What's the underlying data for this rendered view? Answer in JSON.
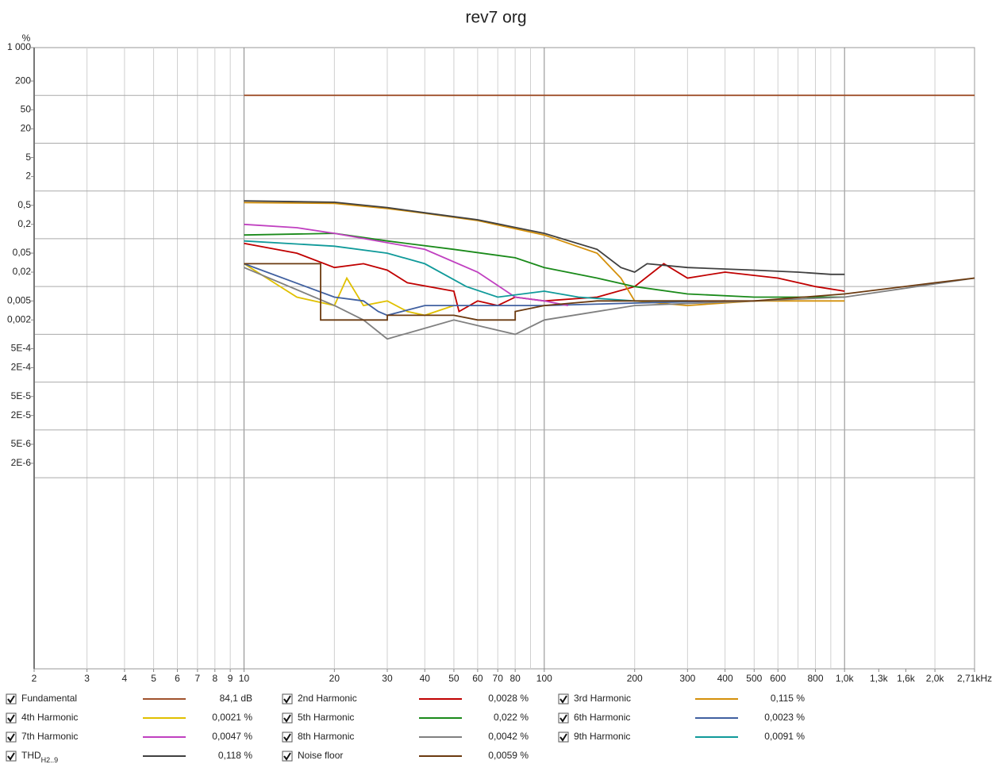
{
  "chart_data": {
    "type": "line",
    "title": "rev7 org",
    "ylabel": "%",
    "xscale": "log",
    "yscale": "log",
    "grid": true,
    "xlim": [
      2,
      2710
    ],
    "ylim": [
      1e-10,
      1000
    ],
    "xticks": [
      2,
      3,
      4,
      5,
      6,
      7,
      8,
      9,
      10,
      20,
      30,
      40,
      50,
      60,
      70,
      80,
      100,
      200,
      300,
      400,
      500,
      600,
      800,
      {
        "value": 1000,
        "label": "1,0k"
      },
      {
        "value": 1300,
        "label": "1,3k"
      },
      {
        "value": 1600,
        "label": "1,6k"
      },
      {
        "value": 2000,
        "label": "2,0k"
      },
      {
        "value": 2710,
        "label": "2,71kHz"
      }
    ],
    "yticks": [
      {
        "value": 1000,
        "label": "1 000"
      },
      200,
      50,
      20,
      5,
      2,
      {
        "value": 0.5,
        "label": "0,5"
      },
      {
        "value": 0.2,
        "label": "0,2"
      },
      {
        "value": 0.05,
        "label": "0,05"
      },
      {
        "value": 0.02,
        "label": "0,02"
      },
      {
        "value": 0.005,
        "label": "0,005"
      },
      {
        "value": 0.002,
        "label": "0,002"
      },
      {
        "value": 0.0005,
        "label": "5E-4"
      },
      {
        "value": 0.0002,
        "label": "2E-4"
      },
      {
        "value": 5e-05,
        "label": "5E-5"
      },
      {
        "value": 2e-05,
        "label": "2E-5"
      },
      {
        "value": 5e-06,
        "label": "5E-6"
      },
      {
        "value": 2e-06,
        "label": "2E-6"
      }
    ],
    "series": [
      {
        "name": "Fundamental",
        "color": "#a0522d",
        "reading": "84,1 dB",
        "x": [
          10,
          2710
        ],
        "values": [
          100,
          100
        ]
      },
      {
        "name": "2nd Harmonic",
        "color": "#c00000",
        "reading": "0,0028 %",
        "x": [
          10,
          15,
          20,
          25,
          30,
          35,
          50,
          52,
          60,
          70,
          80,
          100,
          150,
          200,
          250,
          300,
          400,
          600,
          800,
          1000
        ],
        "values": [
          0.08,
          0.05,
          0.025,
          0.03,
          0.022,
          0.012,
          0.008,
          0.003,
          0.005,
          0.004,
          0.006,
          0.005,
          0.006,
          0.01,
          0.03,
          0.015,
          0.02,
          0.015,
          0.01,
          0.008
        ]
      },
      {
        "name": "3rd Harmonic",
        "color": "#d4900a",
        "reading": "0,115 %",
        "x": [
          10,
          20,
          30,
          40,
          60,
          100,
          150,
          180,
          200,
          300,
          500,
          1000
        ],
        "values": [
          0.57,
          0.55,
          0.43,
          0.34,
          0.24,
          0.12,
          0.05,
          0.015,
          0.005,
          0.004,
          0.005,
          0.005
        ]
      },
      {
        "name": "4th Harmonic",
        "color": "#e0c000",
        "reading": "0,0021 %",
        "x": [
          10,
          15,
          20,
          22,
          25,
          30,
          35,
          40,
          50
        ],
        "values": [
          0.03,
          0.006,
          0.004,
          0.015,
          0.004,
          0.005,
          0.003,
          0.0025,
          0.004
        ]
      },
      {
        "name": "5th Harmonic",
        "color": "#1a8a1a",
        "reading": "0,022 %",
        "x": [
          10,
          20,
          30,
          50,
          80,
          100,
          150,
          200,
          300,
          500,
          1000
        ],
        "values": [
          0.12,
          0.13,
          0.09,
          0.06,
          0.04,
          0.025,
          0.015,
          0.01,
          0.007,
          0.006,
          0.006
        ]
      },
      {
        "name": "6th Harmonic",
        "color": "#4060a0",
        "reading": "0,0023 %",
        "x": [
          10,
          20,
          25,
          28,
          30,
          40,
          100,
          200,
          400
        ],
        "values": [
          0.03,
          0.006,
          0.005,
          0.003,
          0.0025,
          0.004,
          0.004,
          0.0045,
          0.005
        ]
      },
      {
        "name": "7th Harmonic",
        "color": "#c040c0",
        "reading": "0,0047 %",
        "x": [
          10,
          15,
          20,
          40,
          60,
          80,
          100,
          120
        ],
        "values": [
          0.2,
          0.17,
          0.13,
          0.06,
          0.02,
          0.006,
          0.005,
          0.004
        ]
      },
      {
        "name": "8th Harmonic",
        "color": "#808080",
        "reading": "0,0042 %",
        "x": [
          10,
          20,
          25,
          30,
          50,
          80,
          100,
          200,
          500,
          1000,
          2710
        ],
        "values": [
          0.025,
          0.004,
          0.002,
          0.0008,
          0.002,
          0.001,
          0.002,
          0.004,
          0.005,
          0.006,
          0.015
        ]
      },
      {
        "name": "9th Harmonic",
        "color": "#109a9a",
        "reading": "0,0091 %",
        "x": [
          10,
          20,
          30,
          40,
          55,
          70,
          100,
          130,
          200,
          300
        ],
        "values": [
          0.09,
          0.07,
          0.05,
          0.03,
          0.01,
          0.006,
          0.008,
          0.006,
          0.005,
          0.005
        ]
      },
      {
        "name": "THD",
        "sub": "H2..9",
        "color": "#404040",
        "reading": "0,118 %",
        "x": [
          10,
          20,
          30,
          40,
          60,
          100,
          150,
          180,
          200,
          220,
          300,
          500,
          700,
          900,
          1000
        ],
        "values": [
          0.62,
          0.58,
          0.45,
          0.35,
          0.25,
          0.13,
          0.06,
          0.025,
          0.02,
          0.03,
          0.025,
          0.022,
          0.02,
          0.018,
          0.018
        ]
      },
      {
        "name": "Noise floor",
        "color": "#6b3a10",
        "reading": "0,0059 %",
        "x": [
          10,
          18,
          18,
          30,
          30,
          50,
          60,
          80,
          80,
          100,
          150,
          200,
          500,
          1000,
          2000,
          2710
        ],
        "values": [
          0.03,
          0.03,
          0.002,
          0.002,
          0.0025,
          0.0025,
          0.002,
          0.002,
          0.003,
          0.004,
          0.005,
          0.005,
          0.005,
          0.007,
          0.012,
          0.015
        ]
      }
    ]
  }
}
